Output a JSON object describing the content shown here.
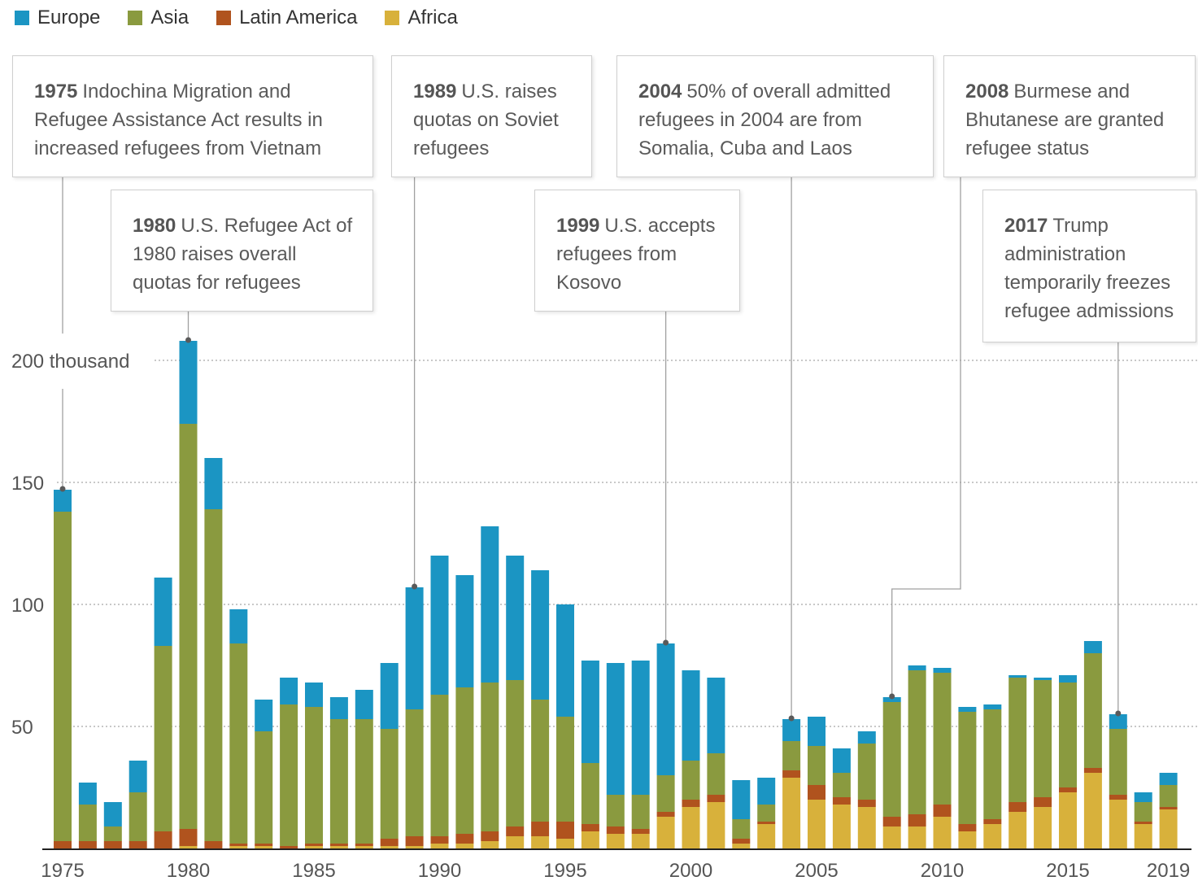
{
  "legend": [
    {
      "label": "Europe",
      "color": "#1b95c3"
    },
    {
      "label": "Asia",
      "color": "#8a9a3f"
    },
    {
      "label": "Latin America",
      "color": "#b0531e"
    },
    {
      "label": "Africa",
      "color": "#d8b13b"
    }
  ],
  "annotations": [
    {
      "year": "1975",
      "text": "Indochina Migration and Refugee Assistance Act results in increased refugees from Vietnam"
    },
    {
      "year": "1980",
      "text": "U.S. Refugee Act of 1980 raises overall quotas for refugees"
    },
    {
      "year": "1989",
      "text": "U.S. raises quotas on Soviet refugees"
    },
    {
      "year": "1999",
      "text": "U.S. accepts refugees from Kosovo"
    },
    {
      "year": "2004",
      "text": "50% of overall admitted refugees in 2004 are from Somalia, Cuba and Laos"
    },
    {
      "year": "2008",
      "text": "Burmese and Bhutanese are granted refugee status"
    },
    {
      "year": "2017",
      "text": "Trump administration temporarily freezes refugee admissions"
    }
  ],
  "chart_data": {
    "type": "bar",
    "stacked": true,
    "x": [
      1975,
      1976,
      1977,
      1978,
      1979,
      1980,
      1981,
      1982,
      1983,
      1984,
      1985,
      1986,
      1987,
      1988,
      1989,
      1990,
      1991,
      1992,
      1993,
      1994,
      1995,
      1996,
      1997,
      1998,
      1999,
      2000,
      2001,
      2002,
      2003,
      2004,
      2005,
      2006,
      2007,
      2008,
      2009,
      2010,
      2011,
      2012,
      2013,
      2014,
      2015,
      2016,
      2017,
      2018,
      2019
    ],
    "x_tick_labels": [
      "1975",
      "1980",
      "1985",
      "1990",
      "1995",
      "2000",
      "2005",
      "2010",
      "2015",
      "2019"
    ],
    "y_tick_labels": [
      "200 thousand",
      "150",
      "100",
      "50"
    ],
    "y_ticks": [
      200,
      150,
      100,
      50
    ],
    "ylim": [
      0,
      210
    ],
    "series": [
      {
        "name": "Africa",
        "color": "#d8b13b",
        "values": [
          0,
          0,
          0,
          0,
          0,
          1,
          0,
          1,
          1,
          0,
          1,
          1,
          1,
          1,
          1,
          2,
          2,
          3,
          5,
          5,
          4,
          7,
          6,
          6,
          13,
          17,
          19,
          2,
          10,
          29,
          20,
          18,
          17,
          9,
          9,
          13,
          7,
          10,
          15,
          17,
          23,
          31,
          20,
          10,
          16
        ]
      },
      {
        "name": "Latin America",
        "color": "#b0531e",
        "values": [
          3,
          3,
          3,
          3,
          7,
          7,
          3,
          1,
          1,
          1,
          1,
          1,
          1,
          3,
          4,
          3,
          4,
          4,
          4,
          6,
          7,
          3,
          3,
          2,
          2,
          3,
          3,
          2,
          1,
          3,
          6,
          3,
          3,
          4,
          5,
          5,
          3,
          2,
          4,
          4,
          2,
          2,
          2,
          1,
          1
        ]
      },
      {
        "name": "Asia",
        "color": "#8a9a3f",
        "values": [
          135,
          15,
          6,
          20,
          76,
          166,
          136,
          82,
          46,
          58,
          56,
          51,
          51,
          45,
          52,
          58,
          60,
          61,
          60,
          50,
          43,
          25,
          13,
          14,
          15,
          16,
          17,
          8,
          7,
          12,
          16,
          10,
          23,
          47,
          59,
          54,
          46,
          45,
          51,
          48,
          43,
          47,
          27,
          8,
          9
        ]
      },
      {
        "name": "Europe",
        "color": "#1b95c3",
        "values": [
          9,
          9,
          10,
          13,
          28,
          34,
          21,
          14,
          13,
          11,
          10,
          9,
          12,
          27,
          50,
          57,
          46,
          64,
          51,
          53,
          46,
          42,
          54,
          55,
          54,
          37,
          31,
          16,
          11,
          9,
          12,
          10,
          5,
          2,
          2,
          2,
          2,
          2,
          1,
          1,
          3,
          5,
          6,
          4,
          5
        ]
      }
    ]
  }
}
